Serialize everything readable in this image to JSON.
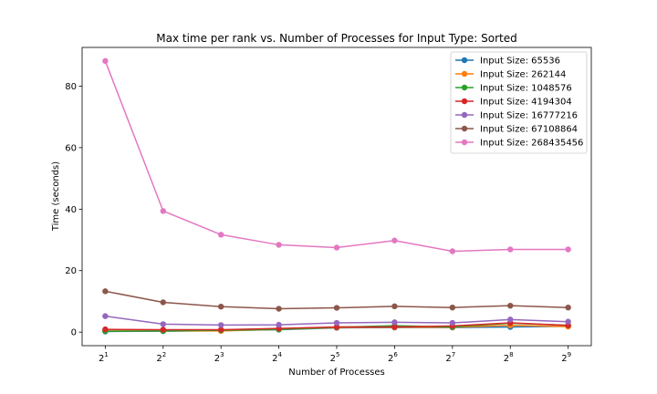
{
  "chart_data": {
    "type": "line",
    "title": "Max time per rank vs. Number of Processes for Input Type: Sorted",
    "xlabel": "Number of Processes",
    "ylabel": "Time (seconds)",
    "x_scale": "log2",
    "x": [
      2,
      4,
      8,
      16,
      32,
      64,
      128,
      256,
      512
    ],
    "x_tick_base": "2",
    "x_tick_exponents": [
      "1",
      "2",
      "3",
      "4",
      "5",
      "6",
      "7",
      "8",
      "9"
    ],
    "ylim": [
      -4.4,
      92.6
    ],
    "yticks": [
      0,
      20,
      40,
      60,
      80
    ],
    "grid": false,
    "legend_position": "top-right",
    "series": [
      {
        "name": "Input Size: 65536",
        "color": "#1f77b4",
        "values": [
          0.2,
          0.3,
          0.5,
          0.8,
          1.4,
          1.5,
          1.5,
          1.7,
          1.9
        ]
      },
      {
        "name": "Input Size: 262144",
        "color": "#ff7f0e",
        "values": [
          0.4,
          0.4,
          0.4,
          0.9,
          1.5,
          1.6,
          1.6,
          2.2,
          1.8
        ]
      },
      {
        "name": "Input Size: 1048576",
        "color": "#2ca02c",
        "values": [
          0.3,
          0.4,
          0.6,
          0.9,
          1.6,
          2.1,
          1.7,
          2.9,
          2.2
        ]
      },
      {
        "name": "Input Size: 4194304",
        "color": "#d62728",
        "values": [
          0.9,
          0.8,
          0.8,
          1.2,
          1.7,
          1.7,
          2.0,
          3.0,
          2.2
        ]
      },
      {
        "name": "Input Size: 16777216",
        "color": "#9467bd",
        "values": [
          5.2,
          2.6,
          2.3,
          2.4,
          3.0,
          3.2,
          3.0,
          4.1,
          3.4
        ]
      },
      {
        "name": "Input Size: 67108864",
        "color": "#8c564b",
        "values": [
          13.3,
          9.7,
          8.3,
          7.6,
          7.9,
          8.4,
          8.0,
          8.6,
          8.0
        ]
      },
      {
        "name": "Input Size: 268435456",
        "color": "#e377c2",
        "values": [
          88.2,
          39.4,
          31.7,
          28.4,
          27.5,
          29.8,
          26.3,
          26.9,
          26.9
        ]
      }
    ]
  }
}
